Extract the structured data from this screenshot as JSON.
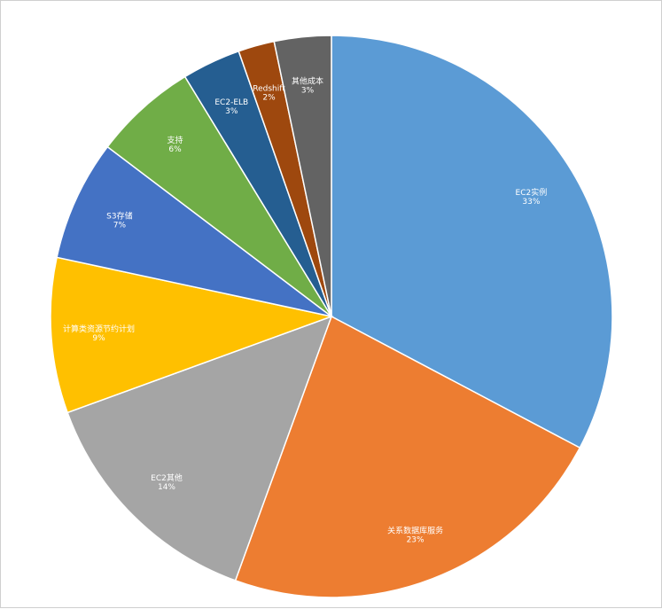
{
  "chart_data": {
    "type": "pie",
    "title": "",
    "slices": [
      {
        "label": "EC2实例",
        "pct": "33%",
        "value": 33,
        "color": "#5b9bd5"
      },
      {
        "label": "关系数据库服务",
        "pct": "23%",
        "value": 23,
        "color": "#ed7d31"
      },
      {
        "label": "EC2其他",
        "pct": "14%",
        "value": 14,
        "color": "#a5a5a5"
      },
      {
        "label": "计算类资源节约计划",
        "pct": "9%",
        "value": 9,
        "color": "#ffc000"
      },
      {
        "label": "S3存储",
        "pct": "7%",
        "value": 7,
        "color": "#4472c4"
      },
      {
        "label": "支持",
        "pct": "6%",
        "value": 6,
        "color": "#70ad47"
      },
      {
        "label": "EC2-ELB",
        "pct": "3%",
        "value": 3.4,
        "color": "#255e91"
      },
      {
        "label": "Redshift",
        "pct": "2%",
        "value": 2.1,
        "color": "#9e480e"
      },
      {
        "label": "其他成本",
        "pct": "3%",
        "value": 3.3,
        "color": "#636363"
      }
    ],
    "legend": "none"
  }
}
